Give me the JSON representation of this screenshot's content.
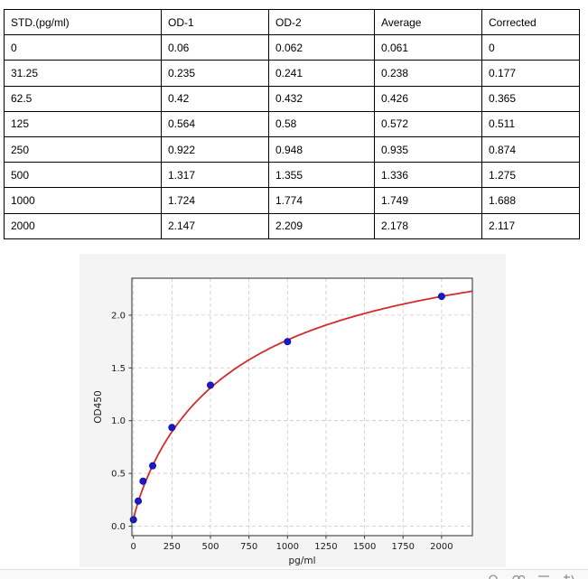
{
  "table": {
    "headers": [
      "STD.(pg/ml)",
      "OD-1",
      "OD-2",
      "Average",
      "Corrected"
    ],
    "rows": [
      [
        "0",
        "0.06",
        "0.062",
        "0.061",
        "0"
      ],
      [
        "31.25",
        "0.235",
        "0.241",
        "0.238",
        "0.177"
      ],
      [
        "62.5",
        "0.42",
        "0.432",
        "0.426",
        "0.365"
      ],
      [
        "125",
        "0.564",
        "0.58",
        "0.572",
        "0.511"
      ],
      [
        "250",
        "0.922",
        "0.948",
        "0.935",
        "0.874"
      ],
      [
        "500",
        "1.317",
        "1.355",
        "1.336",
        "1.275"
      ],
      [
        "1000",
        "1.724",
        "1.774",
        "1.749",
        "1.688"
      ],
      [
        "2000",
        "2.147",
        "2.209",
        "2.178",
        "2.117"
      ]
    ]
  },
  "chart_data": {
    "type": "scatter",
    "title": "",
    "xlabel": "pg/ml",
    "ylabel": "OD450",
    "x": [
      0,
      31.25,
      62.5,
      125,
      250,
      500,
      1000,
      2000
    ],
    "y": [
      0.061,
      0.238,
      0.426,
      0.572,
      0.935,
      1.336,
      1.749,
      2.178
    ],
    "x_ticks": [
      0,
      250,
      500,
      750,
      1000,
      1250,
      1500,
      1750,
      2000
    ],
    "y_ticks": [
      "0.0",
      "0.5",
      "1.0",
      "1.5",
      "2.0"
    ],
    "xlim": [
      -10,
      2200
    ],
    "ylim": [
      -0.09,
      2.35
    ],
    "grid": true,
    "legend": "none",
    "series": [
      {
        "name": "standards-scatter",
        "type": "scatter",
        "color": "#1a1acd"
      },
      {
        "name": "fit-curve",
        "type": "line",
        "color": "#d32b2b",
        "model": "4PL",
        "params": {
          "a": 0.061,
          "b": 0.9,
          "c": 700,
          "d": 3.0
        }
      }
    ],
    "colors": {
      "point": "#1a1acd",
      "point_edge": "#0b0b9e",
      "curve": "#d32b2b",
      "grid": "#c9c9c9",
      "axis": "#3c3c3c",
      "tick_text": "#1a1a1a",
      "plot_bg": "#ffffff",
      "figure_bg": "#f4f4f4"
    }
  },
  "statusbar": {
    "icons": [
      "cropped-icon-a",
      "cropped-icon-b",
      "cropped-icon-c",
      "cropped-icon-d"
    ],
    "icon_color": "#909090"
  }
}
